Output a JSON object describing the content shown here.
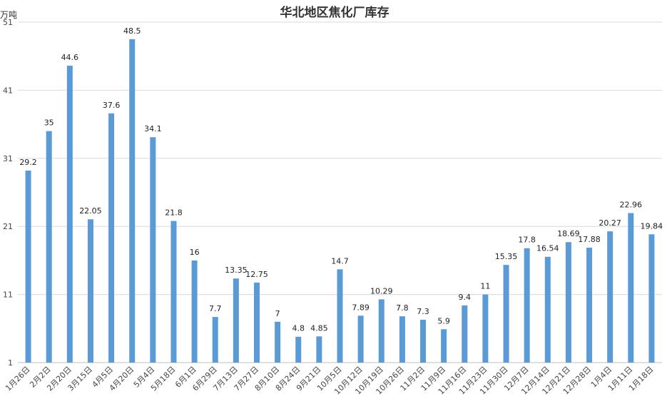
{
  "chart_data": {
    "type": "bar",
    "title": "华北地区焦化厂库存",
    "ylabel": "万吨",
    "xlabel": "",
    "ylim": [
      1,
      51
    ],
    "yticks": [
      1,
      11,
      21,
      31,
      41,
      51
    ],
    "grid": true,
    "bar_color": "#5b9bd5",
    "categories": [
      "1月26日",
      "2月2日",
      "2月20日",
      "3月15日",
      "4月5日",
      "4月20日",
      "5月4日",
      "5月18日",
      "6月1日",
      "6月29日",
      "7月13日",
      "7月27日",
      "8月10日",
      "8月24日",
      "9月21日",
      "10月5日",
      "10月12日",
      "10月19日",
      "10月26日",
      "11月2日",
      "11月9日",
      "11月16日",
      "11月23日",
      "11月30日",
      "12月7日",
      "12月14日",
      "12月21日",
      "12月28日",
      "1月4日",
      "1月11日",
      "1月18日"
    ],
    "values": [
      29.2,
      35,
      44.6,
      22.05,
      37.6,
      48.5,
      34.1,
      21.8,
      16,
      7.7,
      13.35,
      12.75,
      7,
      4.8,
      4.85,
      14.7,
      7.89,
      10.29,
      7.8,
      7.3,
      5.9,
      9.4,
      11,
      15.35,
      17.8,
      16.54,
      18.69,
      17.88,
      20.27,
      22.96,
      19.84
    ],
    "data_labels": [
      "29.2",
      "35",
      "44.6",
      "22.05",
      "37.6",
      "48.5",
      "34.1",
      "21.8",
      "16",
      "7.7",
      "13.35",
      "12.75",
      "7",
      "4.8",
      "4.85",
      "14.7",
      "7.89",
      "10.29",
      "7.8",
      "7.3",
      "5.9",
      "9.4",
      "11",
      "15.35",
      "17.8",
      "16.54",
      "18.69",
      "17.88",
      "20.27",
      "22.96",
      "19.84"
    ]
  }
}
